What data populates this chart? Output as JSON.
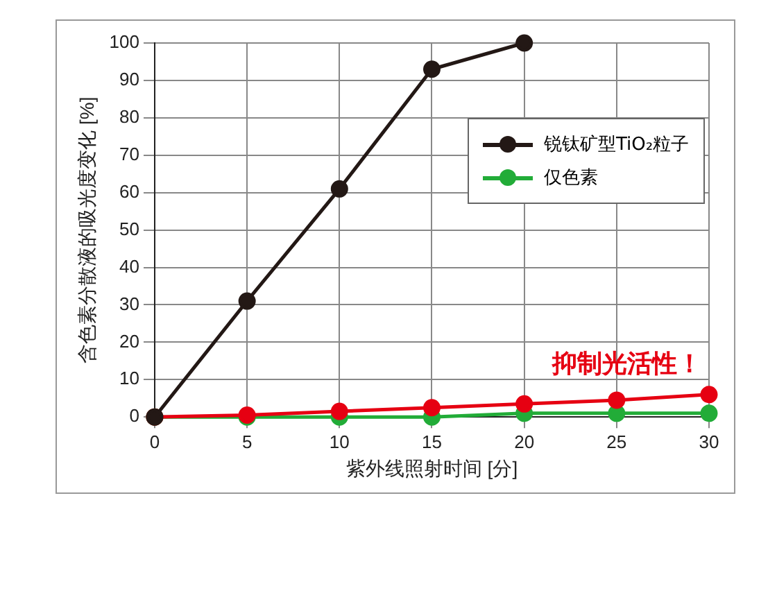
{
  "chart_data": {
    "type": "line",
    "xlabel": "紫外线照射时间 [分]",
    "ylabel": "含色素分散液的吸光度变化 [%]",
    "x": [
      0,
      5,
      10,
      15,
      20,
      25,
      30
    ],
    "series": [
      {
        "name": "锐钛矿型TiO₂粒子",
        "color": "#231815",
        "x": [
          0,
          5,
          10,
          15,
          20
        ],
        "values": [
          0,
          31,
          61,
          93,
          100
        ]
      },
      {
        "color": "#e60012",
        "values": [
          0,
          0.5,
          1.5,
          2.5,
          3.5,
          4.5,
          6
        ]
      },
      {
        "name": "仅色素",
        "color": "#22ac38",
        "values": [
          0,
          0,
          0,
          0,
          1,
          1,
          1
        ]
      }
    ],
    "xlim": [
      0,
      30
    ],
    "xticks": [
      0,
      5,
      10,
      15,
      20,
      25,
      30
    ],
    "ylim": [
      0,
      100
    ],
    "yticks": [
      0,
      10,
      20,
      30,
      40,
      50,
      60,
      70,
      80,
      90,
      100
    ],
    "grid": true,
    "legend": "top right",
    "marker": "circle",
    "line_style": "solid",
    "annotations": [
      "抑制光活性！"
    ]
  }
}
